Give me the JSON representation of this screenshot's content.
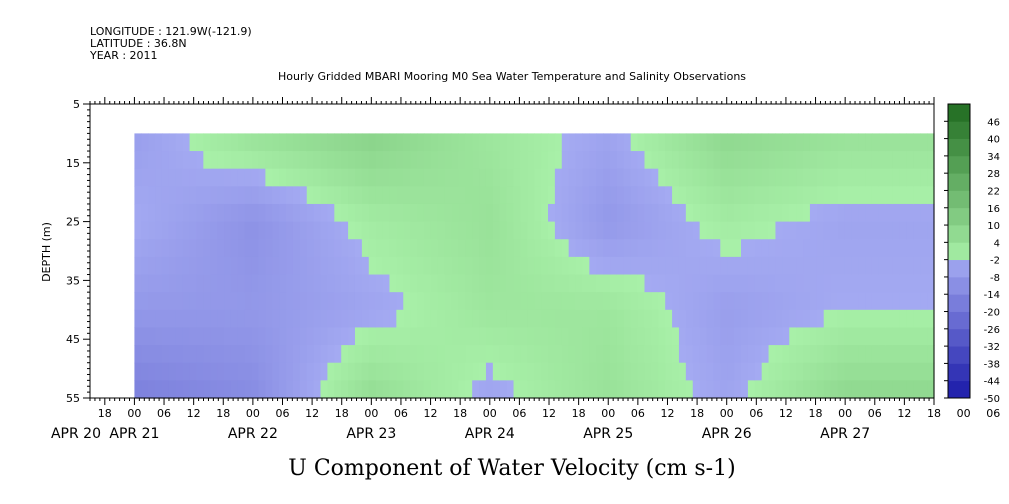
{
  "header": {
    "longitude": "LONGITUDE : 121.9W(-121.9)",
    "latitude": "LATITUDE : 36.8N",
    "year": "YEAR : 2011"
  },
  "chart_data": {
    "type": "heatmap",
    "title": "Hourly Gridded MBARI Mooring M0 Sea Water Temperature and Salinity Observations",
    "xlabel": "U Component of Water Velocity (cm s-1)",
    "ylabel": "DEPTH (m)",
    "y_ticks": [
      "5",
      "15",
      "25",
      "35",
      "45",
      "55"
    ],
    "ylim": [
      55,
      5
    ],
    "data_depth_range": [
      10,
      55
    ],
    "x_hour_labels": [
      "18",
      "00",
      "06",
      "12",
      "18",
      "00",
      "06",
      "12",
      "18",
      "00",
      "06",
      "12",
      "18",
      "00",
      "06",
      "12",
      "18",
      "00",
      "06",
      "12",
      "18",
      "00",
      "06",
      "12",
      "18",
      "00",
      "06",
      "12",
      "18",
      "00",
      "06",
      "12"
    ],
    "x_day_labels": [
      "APR 20",
      "APR 21",
      "APR 22",
      "APR 23",
      "APR 24",
      "APR 25",
      "APR 26",
      "APR 27"
    ],
    "xlim": [
      "2011-04-20T15:00",
      "2011-04-27T18:00"
    ],
    "data_time_range": [
      "2011-04-21T00:00",
      "2011-04-27T18:00"
    ],
    "colorbar": {
      "labels": [
        "46",
        "40",
        "34",
        "28",
        "22",
        "16",
        "10",
        "4",
        "-2",
        "-8",
        "-14",
        "-20",
        "-26",
        "-32",
        "-38",
        "-44",
        "-50"
      ],
      "min": -50,
      "max": 52,
      "step": 6
    },
    "u_velocity_day_profile": {
      "columns": [
        "APR 21",
        "APR 22",
        "APR 23",
        "APR 24",
        "APR 25",
        "APR 26",
        "APR 27"
      ],
      "depths": [
        10,
        25,
        40,
        55
      ],
      "values": [
        [
          -6,
          -2,
          -8,
          -16
        ],
        [
          4,
          -10,
          -8,
          -12
        ],
        [
          10,
          0,
          -4,
          6
        ],
        [
          2,
          4,
          2,
          -4
        ],
        [
          -4,
          -8,
          2,
          4
        ],
        [
          8,
          0,
          -6,
          -4
        ],
        [
          4,
          -4,
          -2,
          8
        ]
      ]
    }
  },
  "colors": {
    "neg_strong": "#1a1aa8",
    "neg_weak": "#a4aaf2",
    "pos_weak": "#a8f0a8",
    "pos_strong": "#1f6b1f"
  }
}
